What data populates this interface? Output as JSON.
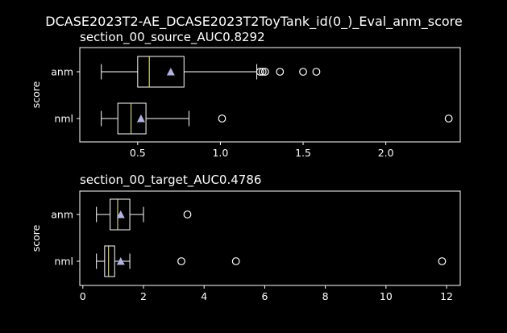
{
  "figure": {
    "title": "DCASE2023T2-AE_DCASE2023T2ToyTank_id(0_)_Eval_anm_score"
  },
  "colors": {
    "background": "#000000",
    "foreground": "#ffffff",
    "median": "#f5f58c",
    "mean_marker": "#b3b3e0"
  },
  "chart_data": [
    {
      "type": "boxplot",
      "orientation": "horizontal",
      "title": "section_00_source_AUC0.8292",
      "xlabel": "",
      "ylabel": "score",
      "xlim": [
        0.15,
        2.45
      ],
      "xticks": [
        0.5,
        1.0,
        1.5,
        2.0
      ],
      "xtick_labels": [
        "0.5",
        "1.0",
        "1.5",
        "2.0"
      ],
      "categories": [
        "anm",
        "nml"
      ],
      "boxes": [
        {
          "label": "anm",
          "whisker_low": 0.28,
          "q1": 0.5,
          "median": 0.57,
          "q3": 0.78,
          "whisker_high": 1.22,
          "mean": 0.7,
          "outliers": [
            1.24,
            1.255,
            1.27,
            1.36,
            1.5,
            1.58
          ]
        },
        {
          "label": "nml",
          "whisker_low": 0.28,
          "q1": 0.38,
          "median": 0.46,
          "q3": 0.55,
          "whisker_high": 0.81,
          "mean": 0.52,
          "outliers": [
            1.01,
            2.38
          ]
        }
      ],
      "grid": false,
      "legend": "none"
    },
    {
      "type": "boxplot",
      "orientation": "horizontal",
      "title": "section_00_target_AUC0.4786",
      "xlabel": "",
      "ylabel": "score",
      "xlim": [
        -0.1,
        12.45
      ],
      "xticks": [
        0,
        2,
        4,
        6,
        8,
        10,
        12
      ],
      "xtick_labels": [
        "0",
        "2",
        "4",
        "6",
        "8",
        "10",
        "12"
      ],
      "categories": [
        "anm",
        "nml"
      ],
      "boxes": [
        {
          "label": "anm",
          "whisker_low": 0.45,
          "q1": 0.9,
          "median": 1.15,
          "q3": 1.55,
          "whisker_high": 2.0,
          "mean": 1.25,
          "outliers": [
            3.45
          ]
        },
        {
          "label": "nml",
          "whisker_low": 0.45,
          "q1": 0.72,
          "median": 0.85,
          "q3": 1.05,
          "whisker_high": 1.55,
          "mean": 1.25,
          "outliers": [
            3.25,
            5.05,
            11.85
          ]
        }
      ],
      "grid": false,
      "legend": "none"
    }
  ]
}
